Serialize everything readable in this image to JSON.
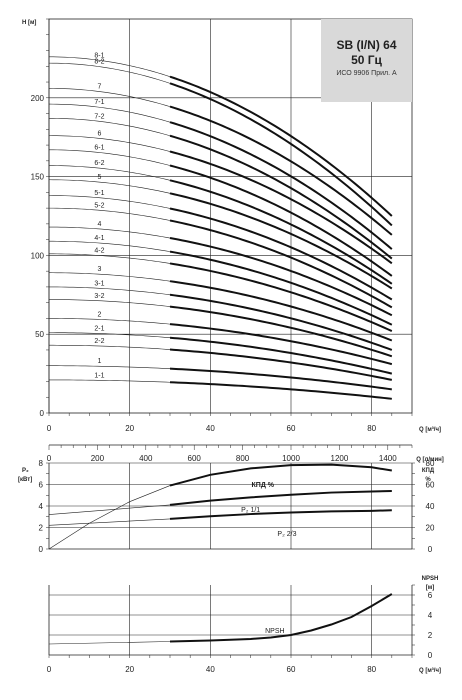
{
  "title": {
    "model": "SB (I/N) 64",
    "frequency": "50 Гц",
    "standard": "ИСО 9906 Прил. А"
  },
  "chart_data": [
    {
      "type": "line",
      "panel": "head",
      "ylabel": "H [м]",
      "xlabel": "Q [м³/ч]",
      "ylim": [
        0,
        250
      ],
      "xlim": [
        0,
        90
      ],
      "yticks": [
        0,
        50,
        100,
        150,
        200
      ],
      "xticks": [
        0,
        20,
        40,
        60,
        80
      ],
      "x2label": "Q [л/мин]",
      "x2ticks": [
        0,
        200,
        400,
        600,
        800,
        1000,
        1200,
        1400
      ],
      "grid": true,
      "series": [
        {
          "name": "8-1",
          "shutoff": 226,
          "end": 125
        },
        {
          "name": "8-2",
          "shutoff": 222,
          "end": 119
        },
        {
          "name": "7",
          "shutoff": 206,
          "end": 113
        },
        {
          "name": "7-1",
          "shutoff": 196,
          "end": 104
        },
        {
          "name": "7-2",
          "shutoff": 187,
          "end": 98
        },
        {
          "name": "6",
          "shutoff": 176,
          "end": 95
        },
        {
          "name": "6-1",
          "shutoff": 167,
          "end": 87
        },
        {
          "name": "6-2",
          "shutoff": 157,
          "end": 82
        },
        {
          "name": "5",
          "shutoff": 148,
          "end": 79
        },
        {
          "name": "5-1",
          "shutoff": 138,
          "end": 72
        },
        {
          "name": "5-2",
          "shutoff": 130,
          "end": 67
        },
        {
          "name": "4",
          "shutoff": 118,
          "end": 62
        },
        {
          "name": "4-1",
          "shutoff": 109,
          "end": 56
        },
        {
          "name": "4-2",
          "shutoff": 101,
          "end": 52
        },
        {
          "name": "3",
          "shutoff": 89,
          "end": 46
        },
        {
          "name": "3-1",
          "shutoff": 80,
          "end": 40
        },
        {
          "name": "3-2",
          "shutoff": 72,
          "end": 36
        },
        {
          "name": "2",
          "shutoff": 60,
          "end": 31
        },
        {
          "name": "2-1",
          "shutoff": 51,
          "end": 25
        },
        {
          "name": "2-2",
          "shutoff": 43,
          "end": 21
        },
        {
          "name": "1",
          "shutoff": 30,
          "end": 15
        },
        {
          "name": "1-1",
          "shutoff": 21,
          "end": 9
        }
      ]
    },
    {
      "type": "line",
      "panel": "power-efficiency",
      "ylabel_left": "P₂",
      "unit_left": "[кВт]",
      "ylabel_right": "КПД",
      "unit_right": "%",
      "ylim_left": [
        0,
        8
      ],
      "ylim_right": [
        0,
        80
      ],
      "yticks_left": [
        0,
        2,
        4,
        6,
        8
      ],
      "yticks_right": [
        0,
        20,
        40,
        60,
        80
      ],
      "series": [
        {
          "name": "КПД %",
          "axis": "right",
          "x": [
            0,
            10,
            20,
            30,
            40,
            50,
            60,
            70,
            80,
            85
          ],
          "y": [
            0,
            24,
            44,
            59,
            69,
            75,
            78,
            78.5,
            76,
            73
          ]
        },
        {
          "name": "P₂ 1/1",
          "axis": "left",
          "x": [
            0,
            30,
            40,
            50,
            60,
            70,
            80,
            85
          ],
          "y": [
            3.2,
            4.1,
            4.5,
            4.8,
            5.05,
            5.25,
            5.35,
            5.4
          ]
        },
        {
          "name": "P₂ 2/3",
          "axis": "left",
          "x": [
            0,
            30,
            40,
            50,
            60,
            70,
            80,
            85
          ],
          "y": [
            2.2,
            2.8,
            3.05,
            3.25,
            3.4,
            3.5,
            3.55,
            3.6
          ]
        }
      ]
    },
    {
      "type": "line",
      "panel": "npsh",
      "ylabel_right": "NPSH",
      "unit_right": "[м]",
      "xlabel": "Q [м³/ч]",
      "ylim": [
        0,
        7
      ],
      "yticks": [
        0,
        2,
        4,
        6
      ],
      "xticks": [
        0,
        20,
        40,
        60,
        80
      ],
      "series": [
        {
          "name": "NPSH",
          "x": [
            0,
            30,
            40,
            50,
            55,
            60,
            65,
            70,
            75,
            80,
            85
          ],
          "y": [
            1.1,
            1.35,
            1.45,
            1.6,
            1.75,
            2.0,
            2.45,
            3.05,
            3.8,
            4.9,
            6.1
          ]
        }
      ]
    }
  ],
  "labels": {
    "kpd_curve": "КПД %",
    "p2_11_prefix": "P",
    "p2_11_suffix": "1/1",
    "p2_23_prefix": "P",
    "p2_23_suffix": "2/3",
    "npsh_curve": "NPSH"
  }
}
